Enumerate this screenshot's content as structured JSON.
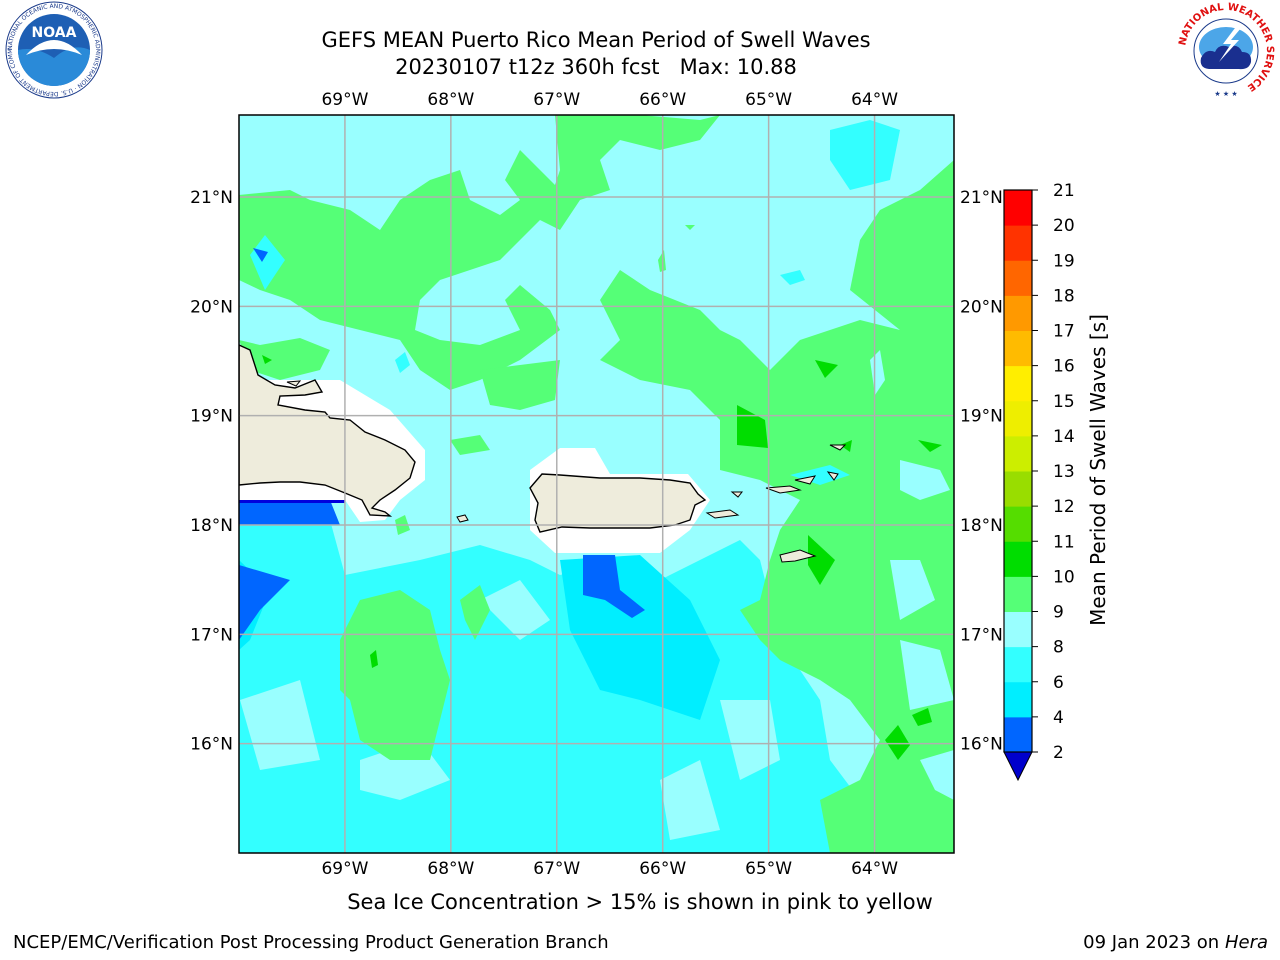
{
  "header": {
    "title_line1": "GEFS MEAN Puerto Rico Mean Period of Swell Waves",
    "title_line2": "20230107 t12z 360h fcst   Max: 10.88"
  },
  "logos": {
    "left_name": "NOAA",
    "left_ring_text": "NATIONAL OCEANIC AND ATMOSPHERIC ADMINISTRATION · U.S. DEPARTMENT OF COMMERCE",
    "right_ring_text": "NATIONAL WEATHER SERVICE"
  },
  "map": {
    "lon_labels": [
      "69°W",
      "68°W",
      "67°W",
      "66°W",
      "65°W",
      "64°W"
    ],
    "lat_labels": [
      "21°N",
      "20°N",
      "19°N",
      "18°N",
      "17°N",
      "16°N"
    ],
    "lon_range": [
      -70,
      -63.25
    ],
    "lat_range": [
      15.0,
      21.75
    ],
    "background_field_value_range": "8-9",
    "land_color": "#eeecdc"
  },
  "colorbar": {
    "label": "Mean Period of Swell Waves [s]",
    "levels": [
      2,
      4,
      6,
      8,
      9,
      10,
      11,
      12,
      13,
      14,
      15,
      16,
      17,
      18,
      19,
      20,
      21
    ],
    "colors": [
      "#0000dd",
      "#0066ff",
      "#00eeff",
      "#33ffff",
      "#99ffff",
      "#55ff77",
      "#00dd00",
      "#55dd00",
      "#99dd00",
      "#ccee00",
      "#eeee00",
      "#ffee00",
      "#ffbb00",
      "#ff9900",
      "#ff6600",
      "#ff3300",
      "#ff0000"
    ],
    "under_color": "#0000cc"
  },
  "caption": "Sea Ice Concentration > 15% is shown in pink to yellow",
  "footer": {
    "left": "NCEP/EMC/Verification Post Processing Product Generation Branch",
    "right_prefix": "09 Jan 2023 on ",
    "right_host": "Hera"
  }
}
